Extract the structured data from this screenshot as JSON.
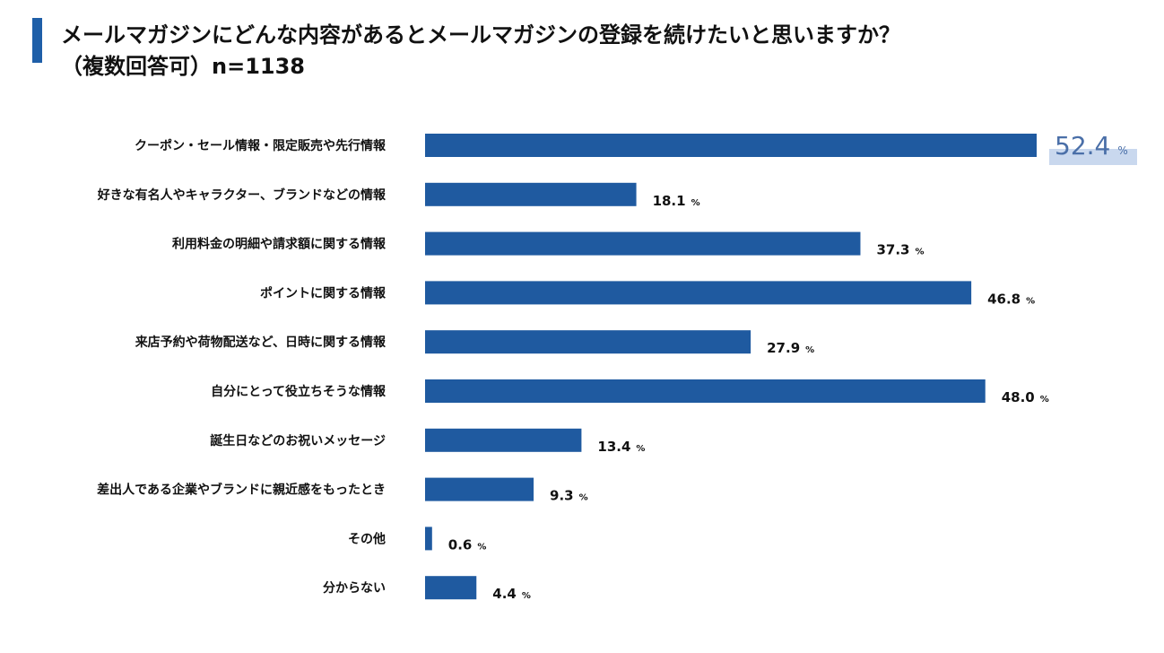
{
  "title": {
    "line1": "メールマガジンにどんな内容があるとメールマガジンの登録を続けたいと思いますか？",
    "line2": "（複数回答可）n=1138"
  },
  "colors": {
    "bar": "#1f5aa0",
    "accent": "#1f5fa8",
    "highlight_text": "#4a6fa8",
    "highlight_bg": "#c9d8ee"
  },
  "chart_data": {
    "type": "bar",
    "orientation": "horizontal",
    "title": "メールマガジンにどんな内容があるとメールマガジンの登録を続けたいと思いますか？（複数回答可）n=1138",
    "unit": "%",
    "xlim": [
      0,
      52.4
    ],
    "categories": [
      "クーポン・セール情報・限定販売や先行情報",
      "好きな有名人やキャラクター、ブランドなどの情報",
      "利用料金の明細や請求額に関する情報",
      "ポイントに関する情報",
      "来店予約や荷物配送など、日時に関する情報",
      "自分にとって役立ちそうな情報",
      "誕生日などのお祝いメッセージ",
      "差出人である企業やブランドに親近感をもったとき",
      "その他",
      "分からない"
    ],
    "values": [
      52.4,
      18.1,
      37.3,
      46.8,
      27.9,
      48.0,
      13.4,
      9.3,
      0.6,
      4.4
    ],
    "value_labels": [
      "52.4",
      "18.1",
      "37.3",
      "46.8",
      "27.9",
      "48.0",
      "13.4",
      "9.3",
      "0.6",
      "4.4"
    ],
    "highlight_index": 0
  }
}
